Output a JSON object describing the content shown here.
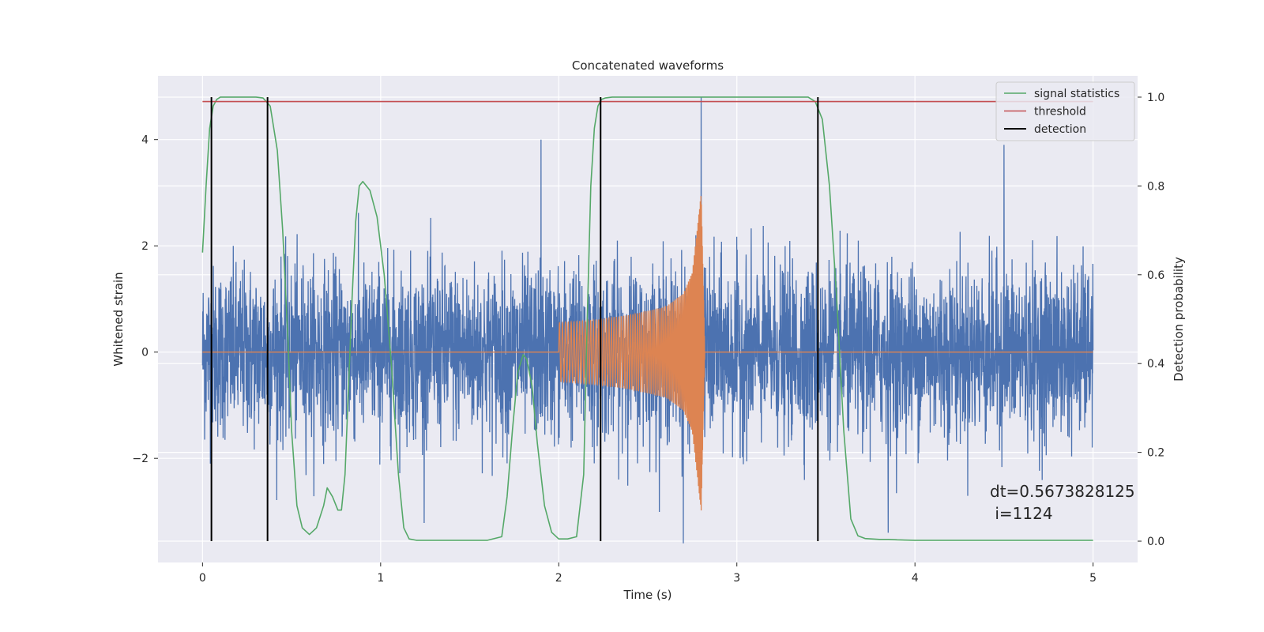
{
  "chart_data": {
    "type": "line",
    "title": "Concatenated waveforms",
    "xlabel": "Time (s)",
    "ylabel": "Whitened strain",
    "ylabel_right": "Detection probability",
    "xlim": [
      -0.25,
      5.25
    ],
    "ylim": [
      -3.96,
      5.2
    ],
    "ylim_right": [
      -0.048,
      1.048
    ],
    "xticks": [
      0,
      1,
      2,
      3,
      4,
      5
    ],
    "yticks": [
      -2,
      0,
      2,
      4
    ],
    "yticks_right": [
      0.0,
      0.2,
      0.4,
      0.6,
      0.8,
      1.0
    ],
    "grid": true,
    "legend_position": "upper right",
    "colors": {
      "strain": "#4c72b0",
      "injection": "#dd8452",
      "signal_statistics": "#55a868",
      "threshold": "#c44e52",
      "detection": "#000000",
      "background": "#eaeaf2",
      "grid": "#ffffff"
    },
    "series": [
      {
        "name": "",
        "axis": "left",
        "description": "whitened strain noise, roughly Gaussian, amplitude mostly within ±2 with spikes to ±3.5, spanning 0 to 5 s",
        "x_range": [
          0,
          5
        ],
        "peaks": [
          [
            1.9,
            4.0
          ],
          [
            2.8,
            4.8
          ],
          [
            4.5,
            3.9
          ],
          [
            2.7,
            -3.6
          ],
          [
            3.85,
            -3.4
          ]
        ]
      },
      {
        "name": "",
        "axis": "left",
        "description": "injected chirp waveform, zero except between 2.0 s and 2.8 s where oscillation grows and frequency increases",
        "x": [
          2.0,
          2.2,
          2.4,
          2.6,
          2.7,
          2.75,
          2.8,
          2.82
        ],
        "envelope": [
          0.55,
          0.6,
          0.7,
          0.85,
          1.1,
          1.5,
          3.0,
          0.0
        ]
      },
      {
        "name": "signal statistics",
        "axis": "right",
        "x": [
          0.0,
          0.02,
          0.04,
          0.06,
          0.08,
          0.1,
          0.2,
          0.3,
          0.34,
          0.38,
          0.42,
          0.45,
          0.48,
          0.5,
          0.53,
          0.56,
          0.6,
          0.64,
          0.68,
          0.7,
          0.73,
          0.76,
          0.78,
          0.8,
          0.82,
          0.84,
          0.86,
          0.88,
          0.9,
          0.94,
          0.98,
          1.02,
          1.06,
          1.1,
          1.13,
          1.16,
          1.2,
          1.4,
          1.6,
          1.68,
          1.71,
          1.74,
          1.77,
          1.8,
          1.82,
          1.85,
          1.88,
          1.92,
          1.96,
          2.0,
          2.05,
          2.1,
          2.14,
          2.16,
          2.18,
          2.2,
          2.22,
          2.24,
          2.26,
          2.3,
          2.5,
          2.8,
          3.0,
          3.2,
          3.4,
          3.44,
          3.48,
          3.52,
          3.56,
          3.6,
          3.64,
          3.68,
          3.72,
          3.8,
          3.85,
          3.9,
          4.0,
          4.5,
          5.0
        ],
        "values": [
          0.65,
          0.8,
          0.93,
          0.98,
          0.995,
          1.0,
          1.0,
          1.0,
          0.998,
          0.98,
          0.88,
          0.7,
          0.45,
          0.25,
          0.08,
          0.03,
          0.015,
          0.03,
          0.08,
          0.12,
          0.1,
          0.07,
          0.07,
          0.15,
          0.35,
          0.55,
          0.72,
          0.8,
          0.81,
          0.79,
          0.73,
          0.6,
          0.4,
          0.15,
          0.03,
          0.005,
          0.002,
          0.002,
          0.002,
          0.01,
          0.1,
          0.25,
          0.38,
          0.42,
          0.41,
          0.35,
          0.22,
          0.08,
          0.02,
          0.005,
          0.005,
          0.01,
          0.15,
          0.5,
          0.8,
          0.93,
          0.98,
          0.995,
          0.998,
          1.0,
          1.0,
          1.0,
          1.0,
          1.0,
          1.0,
          0.99,
          0.95,
          0.8,
          0.55,
          0.25,
          0.05,
          0.012,
          0.006,
          0.004,
          0.004,
          0.003,
          0.002,
          0.002,
          0.002
        ]
      },
      {
        "name": "threshold",
        "axis": "right",
        "x": [
          0,
          5
        ],
        "values": [
          0.99,
          0.99
        ]
      },
      {
        "name": "detection",
        "axis": "right",
        "type": "vlines",
        "x": [
          0.05,
          0.365,
          2.235,
          3.455
        ],
        "ymin": 0.0,
        "ymax": 1.0
      }
    ],
    "legend": [
      "signal statistics",
      "threshold",
      "detection"
    ],
    "annotations": [
      "dt=0.5673828125",
      " i=1124"
    ]
  }
}
